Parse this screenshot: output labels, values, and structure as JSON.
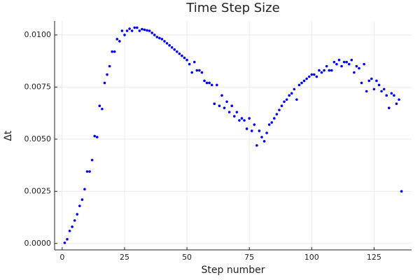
{
  "chart_data": {
    "type": "scatter",
    "title": "Time Step Size",
    "xlabel": "Step number",
    "ylabel": "Δt",
    "color": "#0000ff",
    "grid": true,
    "xlim": [
      -3.05,
      140.05
    ],
    "ylim": [
      -0.00031,
      0.01067
    ],
    "xticks": [
      0,
      25,
      50,
      75,
      100,
      125
    ],
    "yticks": [
      {
        "value": 0,
        "label": "0.0000"
      },
      {
        "value": 0.0025,
        "label": "0.0025"
      },
      {
        "value": 0.005,
        "label": "0.0050"
      },
      {
        "value": 0.0075,
        "label": "0.0075"
      },
      {
        "value": 0.01,
        "label": "0.0100"
      }
    ],
    "x": [
      1,
      2,
      3,
      4,
      5,
      6,
      7,
      8,
      9,
      10,
      11,
      12,
      13,
      14,
      15,
      16,
      17,
      18,
      19,
      20,
      21,
      22,
      23,
      24,
      25,
      26,
      27,
      28,
      29,
      30,
      31,
      32,
      33,
      34,
      35,
      36,
      37,
      38,
      39,
      40,
      41,
      42,
      43,
      44,
      45,
      46,
      47,
      48,
      49,
      50,
      51,
      52,
      53,
      54,
      55,
      56,
      57,
      58,
      59,
      60,
      61,
      62,
      63,
      64,
      65,
      66,
      67,
      68,
      69,
      70,
      71,
      72,
      73,
      74,
      75,
      76,
      77,
      78,
      79,
      80,
      81,
      82,
      83,
      84,
      85,
      86,
      87,
      88,
      89,
      90,
      91,
      92,
      93,
      94,
      95,
      96,
      97,
      98,
      99,
      100,
      101,
      102,
      103,
      104,
      105,
      106,
      107,
      108,
      109,
      110,
      111,
      112,
      113,
      114,
      115,
      116,
      117,
      118,
      119,
      120,
      121,
      122,
      123,
      124,
      125,
      126,
      127,
      128,
      129,
      130,
      131,
      132,
      133,
      134,
      135,
      136
    ],
    "values": [
      3e-05,
      0.0002,
      0.0006,
      0.0008,
      0.0011,
      0.0014,
      0.0018,
      0.0021,
      0.0026,
      0.00345,
      0.00345,
      0.004,
      0.00515,
      0.0051,
      0.0066,
      0.00645,
      0.0077,
      0.0081,
      0.0085,
      0.0092,
      0.0092,
      0.0098,
      0.0097,
      0.0102,
      0.01,
      0.0102,
      0.0103,
      0.0102,
      0.01035,
      0.01035,
      0.0102,
      0.01028,
      0.01025,
      0.01022,
      0.0102,
      0.0101,
      0.01,
      0.0099,
      0.00985,
      0.0098,
      0.0097,
      0.0096,
      0.0095,
      0.0094,
      0.0093,
      0.0092,
      0.0091,
      0.009,
      0.0089,
      0.0088,
      0.0086,
      0.0082,
      0.0087,
      0.0083,
      0.0083,
      0.0082,
      0.0078,
      0.0077,
      0.0077,
      0.0076,
      0.0067,
      0.0076,
      0.0066,
      0.0071,
      0.0065,
      0.0068,
      0.0063,
      0.0066,
      0.0061,
      0.0063,
      0.0059,
      0.006,
      0.0059,
      0.0055,
      0.006,
      0.0054,
      0.0057,
      0.0047,
      0.0054,
      0.0051,
      0.0049,
      0.0053,
      0.0057,
      0.0058,
      0.006,
      0.0062,
      0.0064,
      0.0066,
      0.0068,
      0.0069,
      0.0071,
      0.0072,
      0.0074,
      0.0069,
      0.0076,
      0.0077,
      0.0078,
      0.0079,
      0.008,
      0.0081,
      0.0081,
      0.008,
      0.0083,
      0.0082,
      0.0083,
      0.0085,
      0.0083,
      0.0083,
      0.0087,
      0.0086,
      0.0088,
      0.0085,
      0.0087,
      0.0087,
      0.0086,
      0.0088,
      0.0082,
      0.0085,
      0.0084,
      0.0077,
      0.0086,
      0.0073,
      0.0078,
      0.0079,
      0.0074,
      0.0078,
      0.0076,
      0.0073,
      0.0074,
      0.0071,
      0.0065,
      0.0072,
      0.0071,
      0.0067,
      0.0069,
      0.0025
    ]
  }
}
